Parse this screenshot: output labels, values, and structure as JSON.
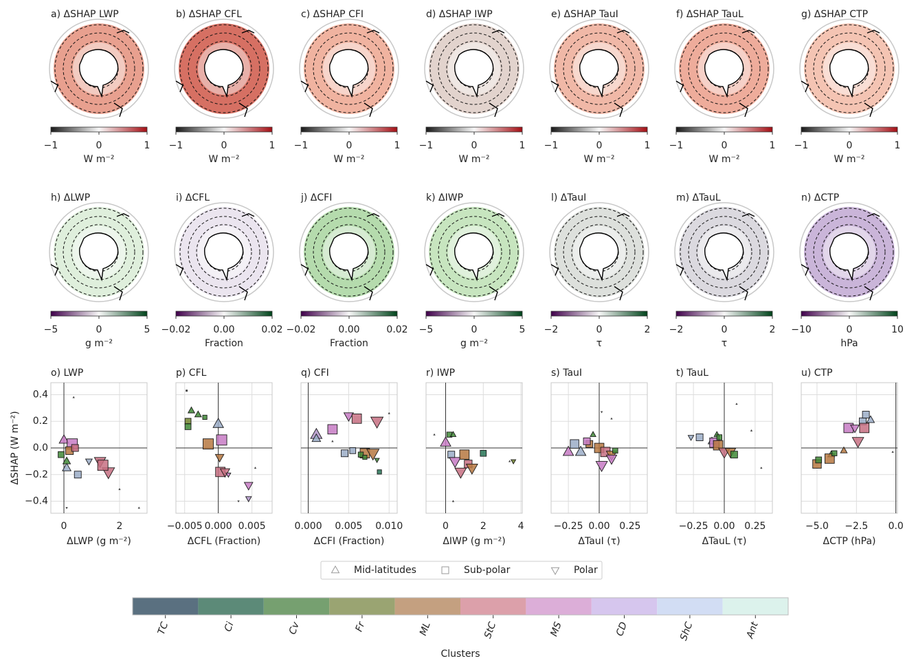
{
  "maps": [
    {
      "title": "a) ΔSHAP LWP",
      "unit": "W m⁻²",
      "ticks": [
        {
          "value": -1,
          "label": "−1"
        },
        0,
        1
      ],
      "cmap": [
        "#1a1a1a",
        "#f7f7f7",
        "#a50f15"
      ],
      "color": "#e0806a"
    },
    {
      "title": "b) ΔSHAP CFL",
      "unit": "W m⁻²",
      "ticks": [
        {
          "value": -1,
          "label": "−1"
        },
        0,
        1
      ],
      "cmap": [
        "#1a1a1a",
        "#f7f7f7",
        "#a50f15"
      ],
      "color": "#c8402f"
    },
    {
      "title": "c) ΔSHAP CFI",
      "unit": "W m⁻²",
      "ticks": [
        {
          "value": -1,
          "label": "−1"
        },
        0,
        1
      ],
      "cmap": [
        "#1a1a1a",
        "#f7f7f7",
        "#a50f15"
      ],
      "color": "#eb9a80"
    },
    {
      "title": "d) ΔSHAP IWP",
      "unit": "W m⁻²",
      "ticks": [
        {
          "value": -1,
          "label": "−1"
        },
        0,
        1
      ],
      "cmap": [
        "#1a1a1a",
        "#f7f7f7",
        "#a50f15"
      ],
      "color": "#d8c4bc"
    },
    {
      "title": "e) ΔSHAP TauI",
      "unit": "W m⁻²",
      "ticks": [
        {
          "value": -1,
          "label": "−1"
        },
        0,
        1
      ],
      "cmap": [
        "#1a1a1a",
        "#f7f7f7",
        "#a50f15"
      ],
      "color": "#eba08a"
    },
    {
      "title": "f) ΔSHAP TauL",
      "unit": "W m⁻²",
      "ticks": [
        {
          "value": -1,
          "label": "−1"
        },
        0,
        1
      ],
      "cmap": [
        "#1a1a1a",
        "#f7f7f7",
        "#a50f15"
      ],
      "color": "#e8907a"
    },
    {
      "title": "g) ΔSHAP CTP",
      "unit": "W m⁻²",
      "ticks": [
        {
          "value": -1,
          "label": "−1"
        },
        0,
        1
      ],
      "cmap": [
        "#1a1a1a",
        "#f7f7f7",
        "#a50f15"
      ],
      "color": "#f0b09a"
    },
    {
      "title": "h) ΔLWP",
      "unit": "g m⁻²",
      "ticks": [
        {
          "value": -5,
          "label": "−5"
        },
        0,
        5
      ],
      "cmap": [
        "#40004b",
        "#f7f7f7",
        "#00441b"
      ],
      "color": "#d4ead0"
    },
    {
      "title": "i) ΔCFL",
      "unit": "Fraction",
      "ticks": [
        {
          "value": -0.02,
          "label": "−0.02"
        },
        {
          "value": 0,
          "label": "0.00"
        },
        {
          "value": 0.02,
          "label": "0.02"
        }
      ],
      "cmap": [
        "#40004b",
        "#f7f7f7",
        "#00441b"
      ],
      "color": "#e4dcea"
    },
    {
      "title": "j) ΔCFI",
      "unit": "Fraction",
      "ticks": [
        {
          "value": -0.02,
          "label": "−0.02"
        },
        {
          "value": 0,
          "label": "0.00"
        },
        {
          "value": 0.02,
          "label": "0.02"
        }
      ],
      "cmap": [
        "#40004b",
        "#f7f7f7",
        "#00441b"
      ],
      "color": "#9ccf92"
    },
    {
      "title": "k) ΔIWP",
      "unit": "g m⁻²",
      "ticks": [
        {
          "value": -5,
          "label": "−5"
        },
        0,
        5
      ],
      "cmap": [
        "#40004b",
        "#f7f7f7",
        "#00441b"
      ],
      "color": "#b4dcaa"
    },
    {
      "title": "l) ΔTauI",
      "unit": "τ",
      "ticks": [
        {
          "value": -2,
          "label": "−2"
        },
        0,
        2
      ],
      "cmap": [
        "#40004b",
        "#f7f7f7",
        "#00441b"
      ],
      "color": "#d2d6d0"
    },
    {
      "title": "m) ΔTauL",
      "unit": "τ",
      "ticks": [
        {
          "value": -2,
          "label": "−2"
        },
        0,
        2
      ],
      "cmap": [
        "#40004b",
        "#f7f7f7",
        "#00441b"
      ],
      "color": "#cfccd4"
    },
    {
      "title": "n) ΔCTP",
      "unit": "hPa",
      "ticks": [
        {
          "value": -10,
          "label": "−10"
        },
        0,
        10
      ],
      "cmap": [
        "#40004b",
        "#f7f7f7",
        "#00441b"
      ],
      "color": "#b89ccc"
    }
  ],
  "chart_data": [
    {
      "type": "scatter",
      "title": "o) LWP",
      "xlabel": "ΔLWP (g m⁻²)",
      "ylabel": "ΔSHAP (W m⁻²)",
      "xlim": [
        -0.47,
        2.99
      ],
      "xticks": [
        0,
        2
      ],
      "ylim": [
        -0.49,
        0.49
      ],
      "yticks": [
        {
          "value": -0.4,
          "label": "−0.4"
        },
        {
          "value": -0.2,
          "label": "−0.2"
        },
        {
          "value": 0,
          "label": "0.0"
        },
        0.2,
        0.4
      ],
      "x": [
        0,
        0.3,
        0.2,
        0.4,
        1.3,
        1.6,
        1.4,
        0.5,
        0.1,
        -0.1,
        0.1,
        0.9,
        2.0,
        0.1,
        0.35,
        2.7
      ],
      "values": [
        0.06,
        0.03,
        -0.02,
        0,
        -0.1,
        -0.18,
        -0.13,
        -0.2,
        -0.15,
        -0.05,
        -0.1,
        -0.1,
        -0.31,
        -0.45,
        0.38,
        -0.45
      ],
      "sizes": [
        10,
        12,
        9,
        8,
        12,
        13,
        12,
        8,
        9,
        7,
        8,
        7,
        2,
        2,
        2,
        2
      ],
      "region": [
        0,
        1,
        1,
        1,
        2,
        2,
        1,
        1,
        0,
        1,
        0,
        2,
        0,
        2,
        0,
        0
      ],
      "cluster": [
        6,
        6,
        4,
        5,
        5,
        5,
        5,
        8,
        8,
        2,
        2,
        8,
        0,
        0,
        0,
        0
      ]
    },
    {
      "type": "scatter",
      "title": "p) CFL",
      "xlabel": "ΔCFL (Fraction)",
      "xlim": [
        -0.0063,
        0.008
      ],
      "xticks": [
        {
          "value": -0.005,
          "label": "−0.005"
        },
        {
          "value": 0,
          "label": "0.000"
        },
        {
          "value": 0.005,
          "label": "0.005"
        }
      ],
      "ylim": [
        -0.49,
        0.49
      ],
      "yticks": [
        -0.4,
        -0.2,
        0,
        0.2,
        0.4
      ],
      "x": [
        -0.0045,
        -0.0045,
        -0.004,
        -0.003,
        -0.002,
        -0.0015,
        0,
        0.0005,
        0.0002,
        0.0003,
        0.001,
        0.0015,
        0.0045,
        0.0045,
        -0.0047,
        0.003,
        0.0055
      ],
      "values": [
        0.2,
        0.16,
        0.28,
        0.25,
        0.23,
        0.03,
        0.18,
        0.06,
        -0.07,
        -0.18,
        -0.18,
        -0.2,
        -0.28,
        -0.38,
        0.43,
        -0.4,
        -0.15
      ],
      "sizes": [
        7,
        7,
        7,
        7,
        5,
        12,
        11,
        12,
        9,
        11,
        10,
        5,
        9,
        6,
        2,
        2,
        2
      ],
      "region": [
        1,
        1,
        0,
        0,
        1,
        1,
        0,
        1,
        2,
        1,
        2,
        2,
        2,
        2,
        1,
        2,
        0
      ],
      "cluster": [
        3,
        2,
        2,
        2,
        2,
        4,
        8,
        6,
        4,
        5,
        5,
        6,
        6,
        7,
        0,
        0,
        0
      ]
    },
    {
      "type": "scatter",
      "title": "q) CFI",
      "xlabel": "ΔCFI (Fraction)",
      "xlim": [
        -0.0009,
        0.011
      ],
      "xticks": [
        {
          "value": 0,
          "label": "0.000"
        },
        0.005,
        {
          "value": 0.01,
          "label": "0.010"
        }
      ],
      "ylim": [
        -0.49,
        0.49
      ],
      "yticks": [
        -0.4,
        -0.2,
        0,
        0.2,
        0.4
      ],
      "x": [
        0.001,
        0.001,
        0.003,
        0.005,
        0.006,
        0.0085,
        0.0045,
        0.0055,
        0.007,
        0.008,
        0.0065,
        0.007,
        0.0085,
        0.0088,
        0.01,
        0.003
      ],
      "values": [
        0.1,
        0.07,
        0.14,
        0.24,
        0.22,
        0.2,
        -0.04,
        -0.02,
        -0.04,
        -0.04,
        -0.05,
        -0.07,
        -0.09,
        -0.18,
        0.26,
        0.05
      ],
      "sizes": [
        12,
        9,
        11,
        10,
        11,
        13,
        8,
        7,
        11,
        13,
        6,
        5,
        5,
        5,
        2,
        2
      ],
      "region": [
        0,
        0,
        1,
        2,
        1,
        2,
        1,
        1,
        1,
        2,
        1,
        1,
        2,
        1,
        0,
        0
      ],
      "cluster": [
        7,
        8,
        6,
        6,
        5,
        5,
        8,
        8,
        4,
        4,
        2,
        2,
        2,
        1,
        0,
        0
      ]
    },
    {
      "type": "scatter",
      "title": "r) IWP",
      "xlabel": "ΔIWP (g m⁻²)",
      "xlim": [
        -1.04,
        4.07
      ],
      "xticks": [
        0,
        2,
        4
      ],
      "ylim": [
        -0.49,
        0.49
      ],
      "yticks": [
        -0.4,
        -0.2,
        0,
        0.2,
        0.4
      ],
      "x": [
        0,
        0.2,
        0.4,
        0.3,
        0.5,
        1,
        1.2,
        1.4,
        0.8,
        2,
        3.6,
        3.4,
        -0.6,
        0.4
      ],
      "values": [
        0.04,
        0.1,
        0.1,
        -0.05,
        -0.1,
        -0.05,
        -0.12,
        -0.15,
        -0.18,
        -0.04,
        -0.1,
        -0.1,
        0.1,
        -0.4
      ],
      "sizes": [
        11,
        6,
        6,
        8,
        12,
        11,
        9,
        12,
        12,
        7,
        5,
        2,
        2,
        2
      ],
      "region": [
        0,
        1,
        0,
        1,
        2,
        1,
        1,
        2,
        2,
        1,
        2,
        0,
        0,
        0
      ],
      "cluster": [
        6,
        2,
        2,
        8,
        6,
        4,
        5,
        4,
        5,
        1,
        3,
        0,
        0,
        0
      ]
    },
    {
      "type": "scatter",
      "title": "s) TauI",
      "xlabel": "ΔTauI (τ)",
      "xlim": [
        -0.39,
        0.39
      ],
      "xticks": [
        {
          "value": -0.25,
          "label": "−0.25"
        },
        {
          "value": 0,
          "label": "0.00"
        },
        0.25
      ],
      "ylim": [
        -0.49,
        0.49
      ],
      "yticks": [
        -0.4,
        -0.2,
        0,
        0.2,
        0.4
      ],
      "x": [
        -0.25,
        -0.15,
        -0.2,
        -0.08,
        -0.1,
        0,
        0.05,
        0.1,
        0.1,
        0.13,
        -0.05,
        0.02,
        0.02,
        0.1
      ],
      "values": [
        -0.03,
        -0.03,
        0.03,
        0.03,
        0.05,
        0,
        -0.03,
        -0.05,
        -0.08,
        -0.02,
        0.1,
        -0.13,
        0.27,
        0.22
      ],
      "sizes": [
        11,
        11,
        10,
        8,
        8,
        11,
        11,
        11,
        11,
        6,
        6,
        12,
        2,
        2
      ],
      "region": [
        0,
        0,
        1,
        1,
        1,
        1,
        1,
        2,
        2,
        1,
        0,
        2,
        2,
        0
      ],
      "cluster": [
        6,
        8,
        8,
        4,
        6,
        4,
        5,
        4,
        6,
        2,
        2,
        6,
        0,
        0
      ]
    },
    {
      "type": "scatter",
      "title": "t) TauL",
      "xlabel": "ΔTauL (τ)",
      "xlim": [
        -0.39,
        0.39
      ],
      "xticks": [
        {
          "value": -0.25,
          "label": "−0.25"
        },
        {
          "value": 0,
          "label": "0.00"
        },
        0.25
      ],
      "ylim": [
        -0.49,
        0.49
      ],
      "yticks": [
        -0.4,
        -0.2,
        0,
        0.2,
        0.4
      ],
      "x": [
        -0.27,
        -0.2,
        -0.1,
        -0.06,
        -0.08,
        -0.05,
        0,
        0.05,
        0.08,
        -0.04,
        0.1,
        0.22,
        0.3
      ],
      "values": [
        0.08,
        0.08,
        0.05,
        0.1,
        0.04,
        0.02,
        -0.03,
        -0.03,
        -0.05,
        0.08,
        0.33,
        0.13,
        -0.15
      ],
      "sizes": [
        6,
        8,
        8,
        6,
        11,
        11,
        12,
        11,
        8,
        6,
        2,
        2,
        2
      ],
      "region": [
        2,
        1,
        0,
        0,
        1,
        1,
        2,
        2,
        1,
        1,
        0,
        0,
        0
      ],
      "cluster": [
        8,
        8,
        8,
        2,
        6,
        4,
        5,
        4,
        2,
        2,
        0,
        0,
        0
      ]
    },
    {
      "type": "scatter",
      "title": "u) CTP",
      "xlabel": "ΔCTP (hPa)",
      "xlim": [
        -6,
        0.1
      ],
      "xticks": [
        {
          "value": -5,
          "label": "−5.0"
        },
        {
          "value": -2.5,
          "label": "−2.5"
        },
        {
          "value": 0,
          "label": "0.0"
        }
      ],
      "ylim": [
        -0.49,
        0.49
      ],
      "yticks": [
        -0.4,
        -0.2,
        0,
        0.2,
        0.4
      ],
      "x": [
        -5,
        -4.9,
        -4.1,
        -4.2,
        -3.9,
        -3.3,
        -3.0,
        -2.4,
        -2.1,
        -1.9,
        -1.6,
        -2.6,
        -2.0,
        -0.2
      ],
      "values": [
        -0.12,
        -0.09,
        -0.05,
        -0.08,
        -0.04,
        -0.02,
        0.15,
        0.05,
        0.2,
        0.25,
        0.21,
        0.15,
        0.15,
        -0.03
      ],
      "sizes": [
        10,
        7,
        7,
        11,
        6,
        7,
        11,
        12,
        8,
        8,
        8,
        9,
        11,
        2
      ],
      "region": [
        1,
        1,
        0,
        1,
        1,
        0,
        1,
        2,
        1,
        1,
        0,
        2,
        1,
        0
      ],
      "cluster": [
        4,
        2,
        2,
        4,
        2,
        4,
        6,
        5,
        8,
        8,
        8,
        6,
        5,
        0
      ]
    }
  ],
  "legend": {
    "entries": [
      {
        "label": "Mid-latitudes",
        "marker": "triangle-up"
      },
      {
        "label": "Sub-polar",
        "marker": "square"
      },
      {
        "label": "Polar",
        "marker": "triangle-down"
      }
    ]
  },
  "clusters": {
    "title": "Clusters",
    "names": [
      "TC",
      "Ci",
      "Cv",
      "Fr",
      "ML",
      "StC",
      "MS",
      "CD",
      "ShC",
      "Ant"
    ],
    "colors": [
      "#5a7080",
      "#5c8a78",
      "#76a070",
      "#9aa472",
      "#c4a080",
      "#dca0aa",
      "#dcaed8",
      "#d6c6ee",
      "#d2ddf4",
      "#dcf2ec"
    ]
  }
}
